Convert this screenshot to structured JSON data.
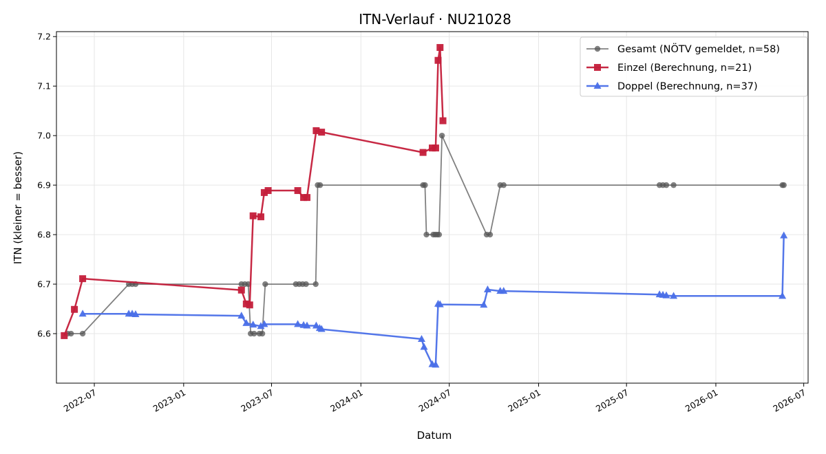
{
  "chart_data": {
    "type": "line",
    "title": "ITN-Verlauf · NU21028",
    "xlabel": "Datum",
    "ylabel": "ITN  (kleiner = besser)",
    "x_axis_type": "date",
    "xlim": [
      "2022-04-14",
      "2026-07-10"
    ],
    "ylim": [
      6.5,
      7.21
    ],
    "grid": true,
    "legend_position": "top-right",
    "x_ticks": [
      "2022-07",
      "2023-01",
      "2023-07",
      "2024-01",
      "2024-07",
      "2025-01",
      "2025-07",
      "2026-01",
      "2026-07"
    ],
    "y_ticks": [
      6.6,
      6.7,
      6.8,
      6.9,
      7.0,
      7.1,
      7.2
    ],
    "series": [
      {
        "name": "Gesamt (NÖTV gemeldet, n=58)",
        "color": "#555555",
        "marker": "circle",
        "points": [
          {
            "x": "2022-05-07",
            "y": 6.6
          },
          {
            "x": "2022-05-14",
            "y": 6.6
          },
          {
            "x": "2022-06-07",
            "y": 6.6
          },
          {
            "x": "2022-09-10",
            "y": 6.7
          },
          {
            "x": "2022-09-17",
            "y": 6.7
          },
          {
            "x": "2022-09-24",
            "y": 6.7
          },
          {
            "x": "2023-04-30",
            "y": 6.7
          },
          {
            "x": "2023-05-07",
            "y": 6.7
          },
          {
            "x": "2023-05-14",
            "y": 6.7
          },
          {
            "x": "2023-05-19",
            "y": 6.6
          },
          {
            "x": "2023-05-26",
            "y": 6.6
          },
          {
            "x": "2023-06-06",
            "y": 6.6
          },
          {
            "x": "2023-06-12",
            "y": 6.6
          },
          {
            "x": "2023-06-18",
            "y": 6.7
          },
          {
            "x": "2023-08-20",
            "y": 6.7
          },
          {
            "x": "2023-08-27",
            "y": 6.7
          },
          {
            "x": "2023-09-03",
            "y": 6.7
          },
          {
            "x": "2023-09-10",
            "y": 6.7
          },
          {
            "x": "2023-09-30",
            "y": 6.7
          },
          {
            "x": "2023-10-04",
            "y": 6.9
          },
          {
            "x": "2023-10-09",
            "y": 6.9
          },
          {
            "x": "2024-05-08",
            "y": 6.9
          },
          {
            "x": "2024-05-12",
            "y": 6.9
          },
          {
            "x": "2024-05-15",
            "y": 6.8
          },
          {
            "x": "2024-05-29",
            "y": 6.8
          },
          {
            "x": "2024-06-02",
            "y": 6.8
          },
          {
            "x": "2024-06-06",
            "y": 6.8
          },
          {
            "x": "2024-06-10",
            "y": 6.8
          },
          {
            "x": "2024-06-16",
            "y": 7.0
          },
          {
            "x": "2024-09-16",
            "y": 6.8
          },
          {
            "x": "2024-09-23",
            "y": 6.8
          },
          {
            "x": "2024-10-14",
            "y": 6.9
          },
          {
            "x": "2024-10-21",
            "y": 6.9
          },
          {
            "x": "2025-09-07",
            "y": 6.9
          },
          {
            "x": "2025-09-14",
            "y": 6.9
          },
          {
            "x": "2025-09-21",
            "y": 6.9
          },
          {
            "x": "2025-10-06",
            "y": 6.9
          },
          {
            "x": "2026-05-18",
            "y": 6.9
          },
          {
            "x": "2026-05-21",
            "y": 6.9
          }
        ]
      },
      {
        "name": "Einzel (Berechnung, n=21)",
        "color": "#c41e3a",
        "marker": "square",
        "points": [
          {
            "x": "2022-04-30",
            "y": 6.596
          },
          {
            "x": "2022-05-21",
            "y": 6.649
          },
          {
            "x": "2022-06-07",
            "y": 6.711
          },
          {
            "x": "2023-04-30",
            "y": 6.688
          },
          {
            "x": "2023-05-10",
            "y": 6.66
          },
          {
            "x": "2023-05-17",
            "y": 6.658
          },
          {
            "x": "2023-05-24",
            "y": 6.838
          },
          {
            "x": "2023-06-09",
            "y": 6.836
          },
          {
            "x": "2023-06-16",
            "y": 6.885
          },
          {
            "x": "2023-06-24",
            "y": 6.889
          },
          {
            "x": "2023-08-24",
            "y": 6.889
          },
          {
            "x": "2023-09-05",
            "y": 6.875
          },
          {
            "x": "2023-09-12",
            "y": 6.875
          },
          {
            "x": "2023-10-01",
            "y": 7.01
          },
          {
            "x": "2023-10-12",
            "y": 7.007
          },
          {
            "x": "2024-05-08",
            "y": 6.966
          },
          {
            "x": "2024-05-27",
            "y": 6.975
          },
          {
            "x": "2024-06-03",
            "y": 6.975
          },
          {
            "x": "2024-06-08",
            "y": 7.152
          },
          {
            "x": "2024-06-12",
            "y": 7.178
          },
          {
            "x": "2024-06-18",
            "y": 7.03
          }
        ]
      },
      {
        "name": "Doppel (Berechnung, n=37)",
        "color": "#4a6fe8",
        "marker": "triangle",
        "points": [
          {
            "x": "2022-06-07",
            "y": 6.64
          },
          {
            "x": "2022-09-10",
            "y": 6.64
          },
          {
            "x": "2022-09-17",
            "y": 6.64
          },
          {
            "x": "2022-09-24",
            "y": 6.639
          },
          {
            "x": "2023-04-30",
            "y": 6.636
          },
          {
            "x": "2023-05-10",
            "y": 6.621
          },
          {
            "x": "2023-05-24",
            "y": 6.618
          },
          {
            "x": "2023-06-09",
            "y": 6.615
          },
          {
            "x": "2023-06-16",
            "y": 6.619
          },
          {
            "x": "2023-08-24",
            "y": 6.619
          },
          {
            "x": "2023-09-05",
            "y": 6.617
          },
          {
            "x": "2023-09-12",
            "y": 6.616
          },
          {
            "x": "2023-10-01",
            "y": 6.616
          },
          {
            "x": "2023-10-08",
            "y": 6.611
          },
          {
            "x": "2023-10-12",
            "y": 6.609
          },
          {
            "x": "2024-05-05",
            "y": 6.589
          },
          {
            "x": "2024-05-10",
            "y": 6.573
          },
          {
            "x": "2024-05-27",
            "y": 6.538
          },
          {
            "x": "2024-06-03",
            "y": 6.537
          },
          {
            "x": "2024-06-08",
            "y": 6.66
          },
          {
            "x": "2024-06-12",
            "y": 6.659
          },
          {
            "x": "2024-09-10",
            "y": 6.658
          },
          {
            "x": "2024-09-18",
            "y": 6.689
          },
          {
            "x": "2024-10-14",
            "y": 6.686
          },
          {
            "x": "2024-10-21",
            "y": 6.686
          },
          {
            "x": "2025-09-07",
            "y": 6.679
          },
          {
            "x": "2025-09-14",
            "y": 6.678
          },
          {
            "x": "2025-09-21",
            "y": 6.677
          },
          {
            "x": "2025-10-06",
            "y": 6.676
          },
          {
            "x": "2026-05-18",
            "y": 6.676
          },
          {
            "x": "2026-05-21",
            "y": 6.798
          }
        ]
      }
    ]
  }
}
